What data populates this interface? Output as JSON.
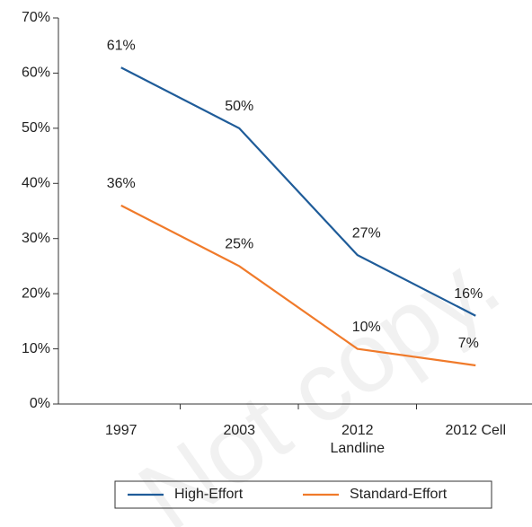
{
  "chart_data": {
    "type": "line",
    "categories": [
      "1997",
      "2003",
      "2012\nLandline",
      "2012 Cell"
    ],
    "series": [
      {
        "name": "High-Effort",
        "color": "#1f5c99",
        "values": [
          61,
          50,
          27,
          16
        ],
        "value_labels": [
          "61%",
          "50%",
          "27%",
          "16%"
        ]
      },
      {
        "name": "Standard-Effort",
        "color": "#f07a2a",
        "values": [
          36,
          25,
          10,
          7
        ],
        "value_labels": [
          "36%",
          "25%",
          "10%",
          "7%"
        ]
      }
    ],
    "ylim": [
      0,
      70
    ],
    "yticks": [
      {
        "value": 0,
        "label": "0%"
      },
      {
        "value": 10,
        "label": "10%"
      },
      {
        "value": 20,
        "label": "20%"
      },
      {
        "value": 30,
        "label": "30%"
      },
      {
        "value": 40,
        "label": "40%"
      },
      {
        "value": 50,
        "label": "50%"
      },
      {
        "value": 60,
        "label": "60%"
      },
      {
        "value": 70,
        "label": "70%"
      }
    ],
    "watermark": "Not copy.",
    "legend": "bottom"
  }
}
